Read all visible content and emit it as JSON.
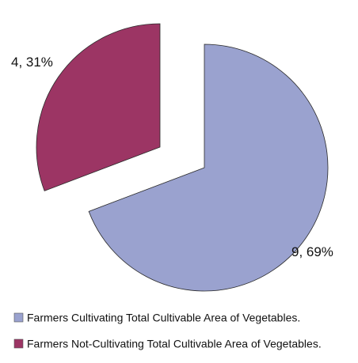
{
  "chart_data": {
    "type": "pie",
    "title": "",
    "exploded": true,
    "start_angle_deg": 0,
    "direction": "clockwise",
    "slices": [
      {
        "label": "Farmers Cultivating Total Cultivable Area of Vegetables.",
        "value": 9,
        "percent": 69,
        "data_label": "9, 69%",
        "color": "#9aa2cf"
      },
      {
        "label": "Farmers Not-Cultivating Total Cultivable Area of Vegetables.",
        "value": 4,
        "percent": 31,
        "data_label": "4, 31%",
        "color": "#9c3564"
      }
    ],
    "legend": {
      "placement": "bottom",
      "entries": [
        "Farmers Cultivating Total Cultivable Area of Vegetables.",
        "Farmers Not-Cultivating Total Cultivable Area of Vegetables."
      ]
    }
  }
}
